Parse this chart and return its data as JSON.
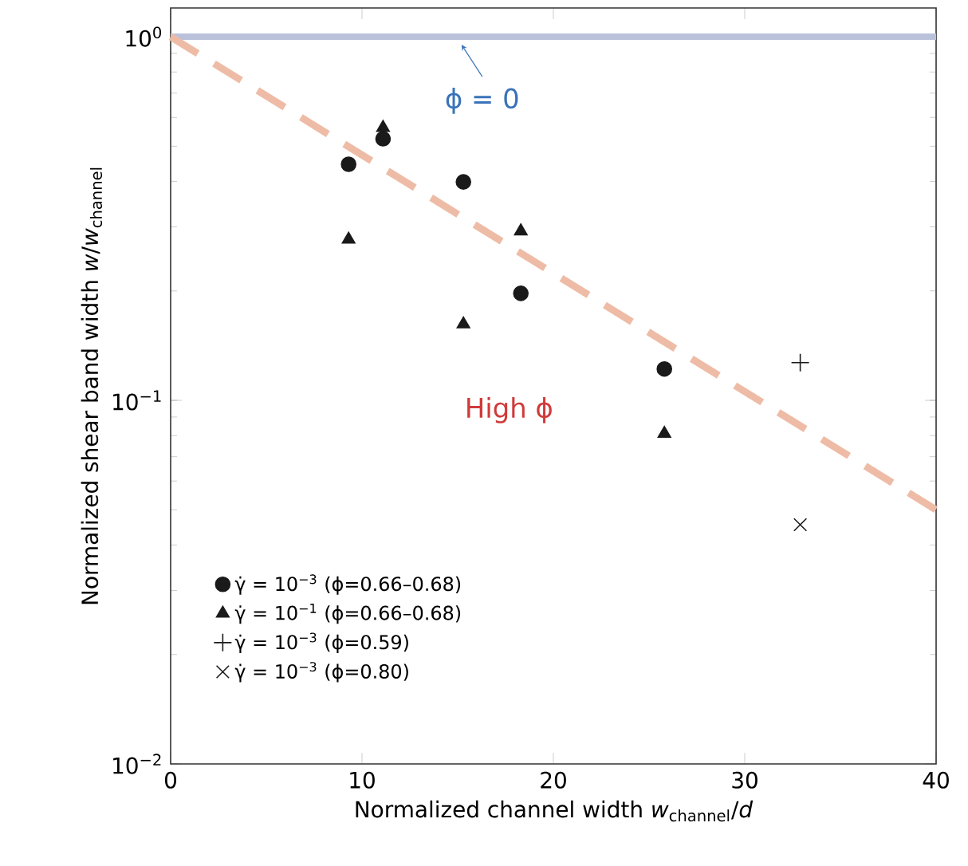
{
  "chart_data": {
    "type": "scatter",
    "xlabel": "Normalized channel width *w*$_{channel}$/*d*",
    "ylabel": "Normalized shear band width *w*/*w*$_{channel}$",
    "log": "y",
    "xlim": [
      0,
      40
    ],
    "ylim": [
      0.01,
      1.2
    ],
    "xticks": [
      0,
      10,
      20,
      30,
      40
    ],
    "yticks": [
      {
        "value": 0.01,
        "label": "10$^{−2}$"
      },
      {
        "value": 0.1,
        "label": "10$^{−1}$"
      },
      {
        "value": 1,
        "label": "10$^{0}$"
      }
    ],
    "legend": "bottom left",
    "ref_lines": [
      {
        "axis": "y",
        "value": 1,
        "color": "#b9c1db"
      }
    ],
    "annotations": [
      {
        "text": "ϕ = 0",
        "x": 15.2,
        "y": 1
      },
      "High ϕ"
    ],
    "series": [
      {
        "name": "γ̇ = 10$^{−3}$ (ϕ=0.66–0.68)",
        "color": "#1a1a1a",
        "marker": "circle",
        "x": [
          9.3,
          11.1,
          15.3,
          18.3,
          25.8
        ],
        "values": [
          0.446,
          0.524,
          0.399,
          0.197,
          0.122
        ]
      },
      {
        "name": "γ̇ = 10$^{−1}$ (ϕ=0.66–0.68)",
        "color": "#1a1a1a",
        "marker": "triangle",
        "x": [
          9.3,
          11.1,
          15.3,
          18.3,
          25.8
        ],
        "values": [
          0.277,
          0.562,
          0.162,
          0.292,
          0.081
        ]
      },
      {
        "name": "γ̇ = 10$^{−3}$ (ϕ=0.59)",
        "color": "#1a1a1a",
        "marker": "plus",
        "x": [
          32.9
        ],
        "values": [
          0.127
        ]
      },
      {
        "name": "γ̇ = 10$^{−3}$ (ϕ=0.80)",
        "color": "#1a1a1a",
        "marker": "cross",
        "x": [
          32.9
        ],
        "values": [
          0.0455
        ]
      },
      {
        "type": "line",
        "color": "#eebca6",
        "marker": "none",
        "line_style": "dashed",
        "x": [
          0,
          40
        ],
        "values": [
          1,
          0.05
        ]
      }
    ]
  }
}
